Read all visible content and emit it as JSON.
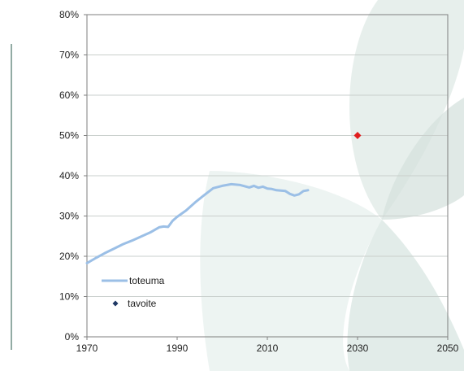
{
  "chart_data": {
    "type": "line",
    "title": "",
    "xlabel": "",
    "ylabel": "",
    "xlim": [
      1970,
      2050
    ],
    "ylim": [
      0,
      80
    ],
    "x_ticks": [
      1970,
      1990,
      2010,
      2030,
      2050
    ],
    "y_ticks": [
      0,
      10,
      20,
      30,
      40,
      50,
      60,
      70,
      80
    ],
    "y_tick_labels": [
      "0%",
      "10%",
      "20%",
      "30%",
      "40%",
      "50%",
      "60%",
      "70%",
      "80%"
    ],
    "grid": "horizontal",
    "legend_position": "bottom-left",
    "series": [
      {
        "name": "toteuma",
        "kind": "line",
        "color": "#9bbfe6",
        "x": [
          1970,
          1972,
          1974,
          1976,
          1978,
          1980,
          1982,
          1984,
          1986,
          1987,
          1988,
          1989,
          1990,
          1992,
          1994,
          1996,
          1998,
          2000,
          2002,
          2004,
          2006,
          2007,
          2008,
          2009,
          2010,
          2011,
          2012,
          2014,
          2015,
          2016,
          2017,
          2018,
          2019
        ],
        "y": [
          18.3,
          19.6,
          20.8,
          21.9,
          23.0,
          23.9,
          24.9,
          25.9,
          27.2,
          27.4,
          27.3,
          28.8,
          29.8,
          31.4,
          33.4,
          35.2,
          36.9,
          37.5,
          37.9,
          37.7,
          37.1,
          37.5,
          37.0,
          37.3,
          36.8,
          36.7,
          36.4,
          36.2,
          35.5,
          35.1,
          35.4,
          36.2,
          36.4
        ]
      },
      {
        "name": "tavoite",
        "kind": "marker",
        "legend_color": "#1f3864",
        "color": "#e01e1e",
        "x": [
          2030
        ],
        "y": [
          50
        ]
      }
    ]
  }
}
